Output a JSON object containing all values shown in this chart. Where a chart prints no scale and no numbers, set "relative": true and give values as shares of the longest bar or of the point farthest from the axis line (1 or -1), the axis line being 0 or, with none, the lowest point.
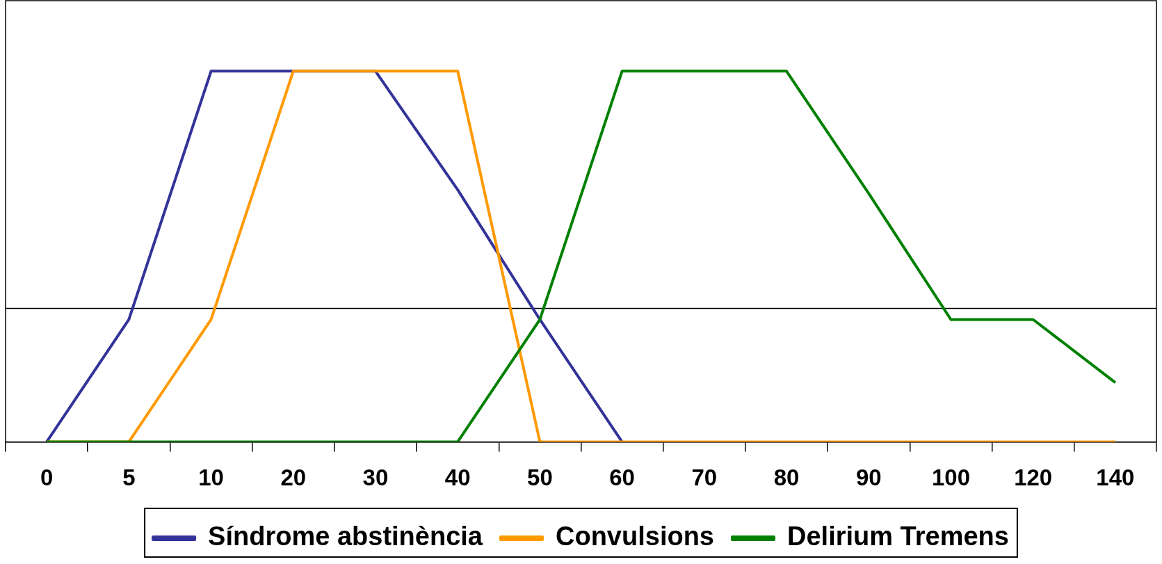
{
  "chart_data": {
    "type": "line",
    "relative": true,
    "categories": [
      "0",
      "5",
      "10",
      "20",
      "30",
      "40",
      "50",
      "60",
      "70",
      "80",
      "90",
      "100",
      "120",
      "140"
    ],
    "series": [
      {
        "name": "Síndrome abstinència",
        "color": "#333399",
        "values": [
          0,
          0.33,
          1,
          1,
          1,
          0.68,
          0.33,
          0,
          null,
          null,
          null,
          null,
          null,
          null
        ]
      },
      {
        "name": "Convulsions",
        "color": "#ff9900",
        "values": [
          0,
          0,
          0.33,
          1,
          1,
          1,
          0,
          0,
          0,
          0,
          0,
          0,
          0,
          0
        ]
      },
      {
        "name": "Delirium Tremens",
        "color": "#008000",
        "values": [
          0,
          0,
          0,
          0,
          0,
          0,
          0.33,
          1,
          1,
          1,
          0.67,
          0.33,
          0.33,
          0.16
        ]
      }
    ],
    "ref_lines": [
      {
        "axis": "y",
        "value": 0.36,
        "color": "#000000"
      }
    ],
    "legend": "bottom",
    "marker": "none",
    "line_style": "solid"
  }
}
